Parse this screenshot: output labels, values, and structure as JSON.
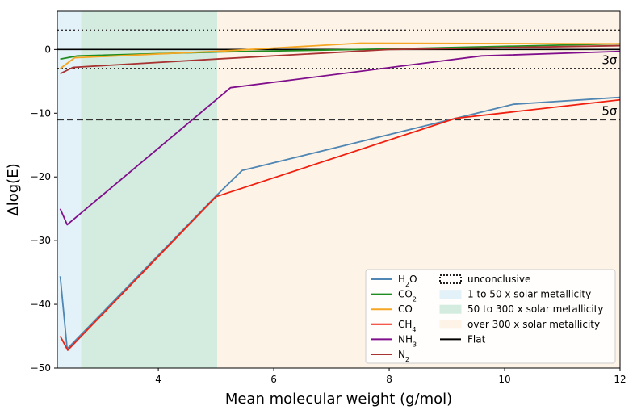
{
  "chart_data": {
    "type": "line",
    "xlabel": "Mean molecular weight (g/mol)",
    "ylabel": "Δlog(E)",
    "xlim": [
      2.25,
      12
    ],
    "ylim": [
      -50,
      6
    ],
    "xticks": [
      4,
      6,
      8,
      10,
      12
    ],
    "yticks": [
      -50,
      -40,
      -30,
      -20,
      -10,
      0
    ],
    "tick_labels_x": [
      "4",
      "6",
      "8",
      "10",
      "12"
    ],
    "tick_labels_y": [
      "−50",
      "−40",
      "−30",
      "−20",
      "−10",
      "0"
    ],
    "regions": [
      {
        "name": "1 to 50 x solar metallicity",
        "x0": 2.25,
        "x1": 2.66,
        "color": "#e3f2f8"
      },
      {
        "name": "50 to 300 x solar metallicity",
        "x0": 2.66,
        "x1": 5.02,
        "color": "#d3ecdf"
      },
      {
        "name": "over 300 x solar metallicity",
        "x0": 5.02,
        "x1": 12,
        "color": "#fef3e7"
      }
    ],
    "hlines": [
      {
        "y": 3,
        "style": "dotted",
        "color": "#333333"
      },
      {
        "y": -3,
        "style": "dotted",
        "color": "#333333"
      },
      {
        "y": -11,
        "style": "dashed",
        "color": "#333333"
      },
      {
        "y": 0,
        "style": "solid",
        "color": "#000000"
      }
    ],
    "sigma_labels": [
      {
        "text": "3σ",
        "x": 11.95,
        "y": -2.3
      },
      {
        "text": "5σ",
        "x": 11.95,
        "y": -10.3
      }
    ],
    "series": [
      {
        "name": "H₂O",
        "color": "#4f86b3",
        "x": [
          2.3,
          2.42,
          5.02,
          5.45,
          10.15,
          12
        ],
        "y": [
          -35.6,
          -47,
          -22.8,
          -19,
          -8.6,
          -7.5
        ]
      },
      {
        "name": "CO₂",
        "color": "#1e8c1e",
        "x": [
          2.3,
          2.6,
          5.0,
          8.0,
          12
        ],
        "y": [
          -1.5,
          -1.0,
          -0.4,
          0.1,
          0.9
        ]
      },
      {
        "name": "CO",
        "color": "#f5a623",
        "x": [
          2.3,
          2.55,
          5.0,
          7.5,
          12
        ],
        "y": [
          -3.0,
          -1.3,
          -0.3,
          1.0,
          0.9
        ]
      },
      {
        "name": "CH₄",
        "color": "#f02010",
        "x": [
          2.3,
          2.43,
          5.0,
          9.15,
          12
        ],
        "y": [
          -45,
          -47.2,
          -23.1,
          -10.8,
          -7.9
        ]
      },
      {
        "name": "NH₃",
        "color": "#800f8c",
        "x": [
          2.3,
          2.42,
          5.25,
          9.6,
          12
        ],
        "y": [
          -25,
          -27.5,
          -6.0,
          -1.0,
          -0.3
        ]
      },
      {
        "name": "N₂",
        "color": "#a83232",
        "x": [
          2.3,
          2.52,
          5.0,
          8.0,
          12
        ],
        "y": [
          -3.8,
          -2.8,
          -1.5,
          0.0,
          0.6
        ]
      }
    ],
    "legend": {
      "position": "lower-right",
      "entries": [
        {
          "kind": "line",
          "label": "H₂O",
          "color": "#4f86b3"
        },
        {
          "kind": "line",
          "label": "CO₂",
          "color": "#1e8c1e"
        },
        {
          "kind": "line",
          "label": "CO",
          "color": "#f5a623"
        },
        {
          "kind": "line",
          "label": "CH₄",
          "color": "#f02010"
        },
        {
          "kind": "line",
          "label": "NH₃",
          "color": "#800f8c"
        },
        {
          "kind": "line",
          "label": "N₂",
          "color": "#a83232"
        },
        {
          "kind": "dotted-box",
          "label": "unconclusive",
          "color": "#000000"
        },
        {
          "kind": "patch",
          "label": "1 to 50 x solar metallicity",
          "color": "#e3f2f8"
        },
        {
          "kind": "patch",
          "label": "50 to 300 x solar metallicity",
          "color": "#d3ecdf"
        },
        {
          "kind": "patch",
          "label": "over 300 x solar metallicity",
          "color": "#fef3e7"
        },
        {
          "kind": "line",
          "label": "Flat",
          "color": "#000000"
        }
      ]
    }
  }
}
